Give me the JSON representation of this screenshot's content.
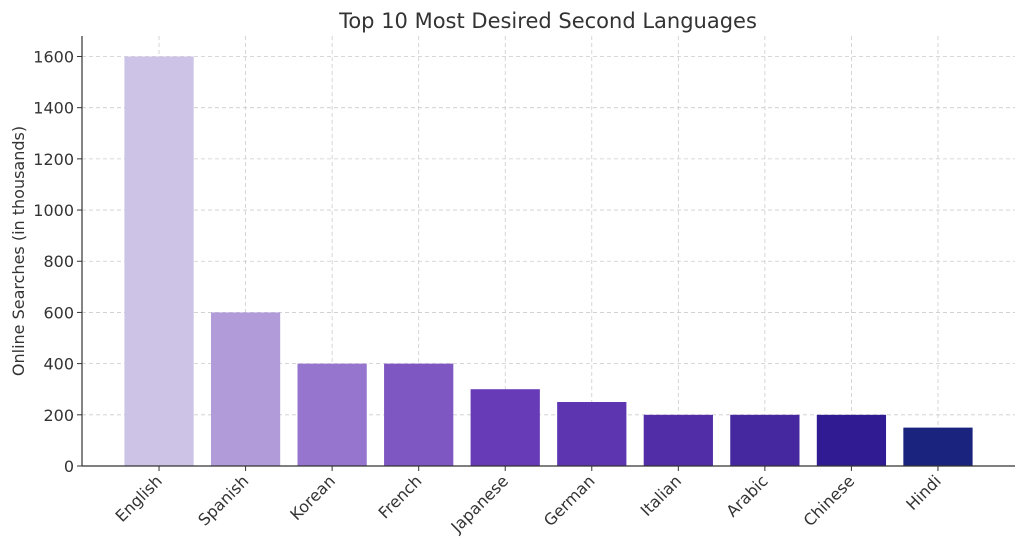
{
  "chart_data": {
    "type": "bar",
    "title": "Top 10 Most Desired Second Languages",
    "xlabel": "",
    "ylabel": "Online Searches (in thousands)",
    "categories": [
      "English",
      "Spanish",
      "Korean",
      "French",
      "Japanese",
      "German",
      "Italian",
      "Arabic",
      "Chinese",
      "Hindi"
    ],
    "values": [
      1600,
      600,
      400,
      400,
      300,
      250,
      200,
      200,
      200,
      150
    ],
    "colors": [
      "#cdc3e6",
      "#b19cd9",
      "#9575cd",
      "#7e57c2",
      "#673ab7",
      "#5e35b1",
      "#512da8",
      "#4527a0",
      "#311b92",
      "#1a237e"
    ],
    "ylim": [
      0,
      1680
    ],
    "yticks": [
      0,
      200,
      400,
      600,
      800,
      1000,
      1200,
      1400,
      1600
    ],
    "grid": true
  }
}
